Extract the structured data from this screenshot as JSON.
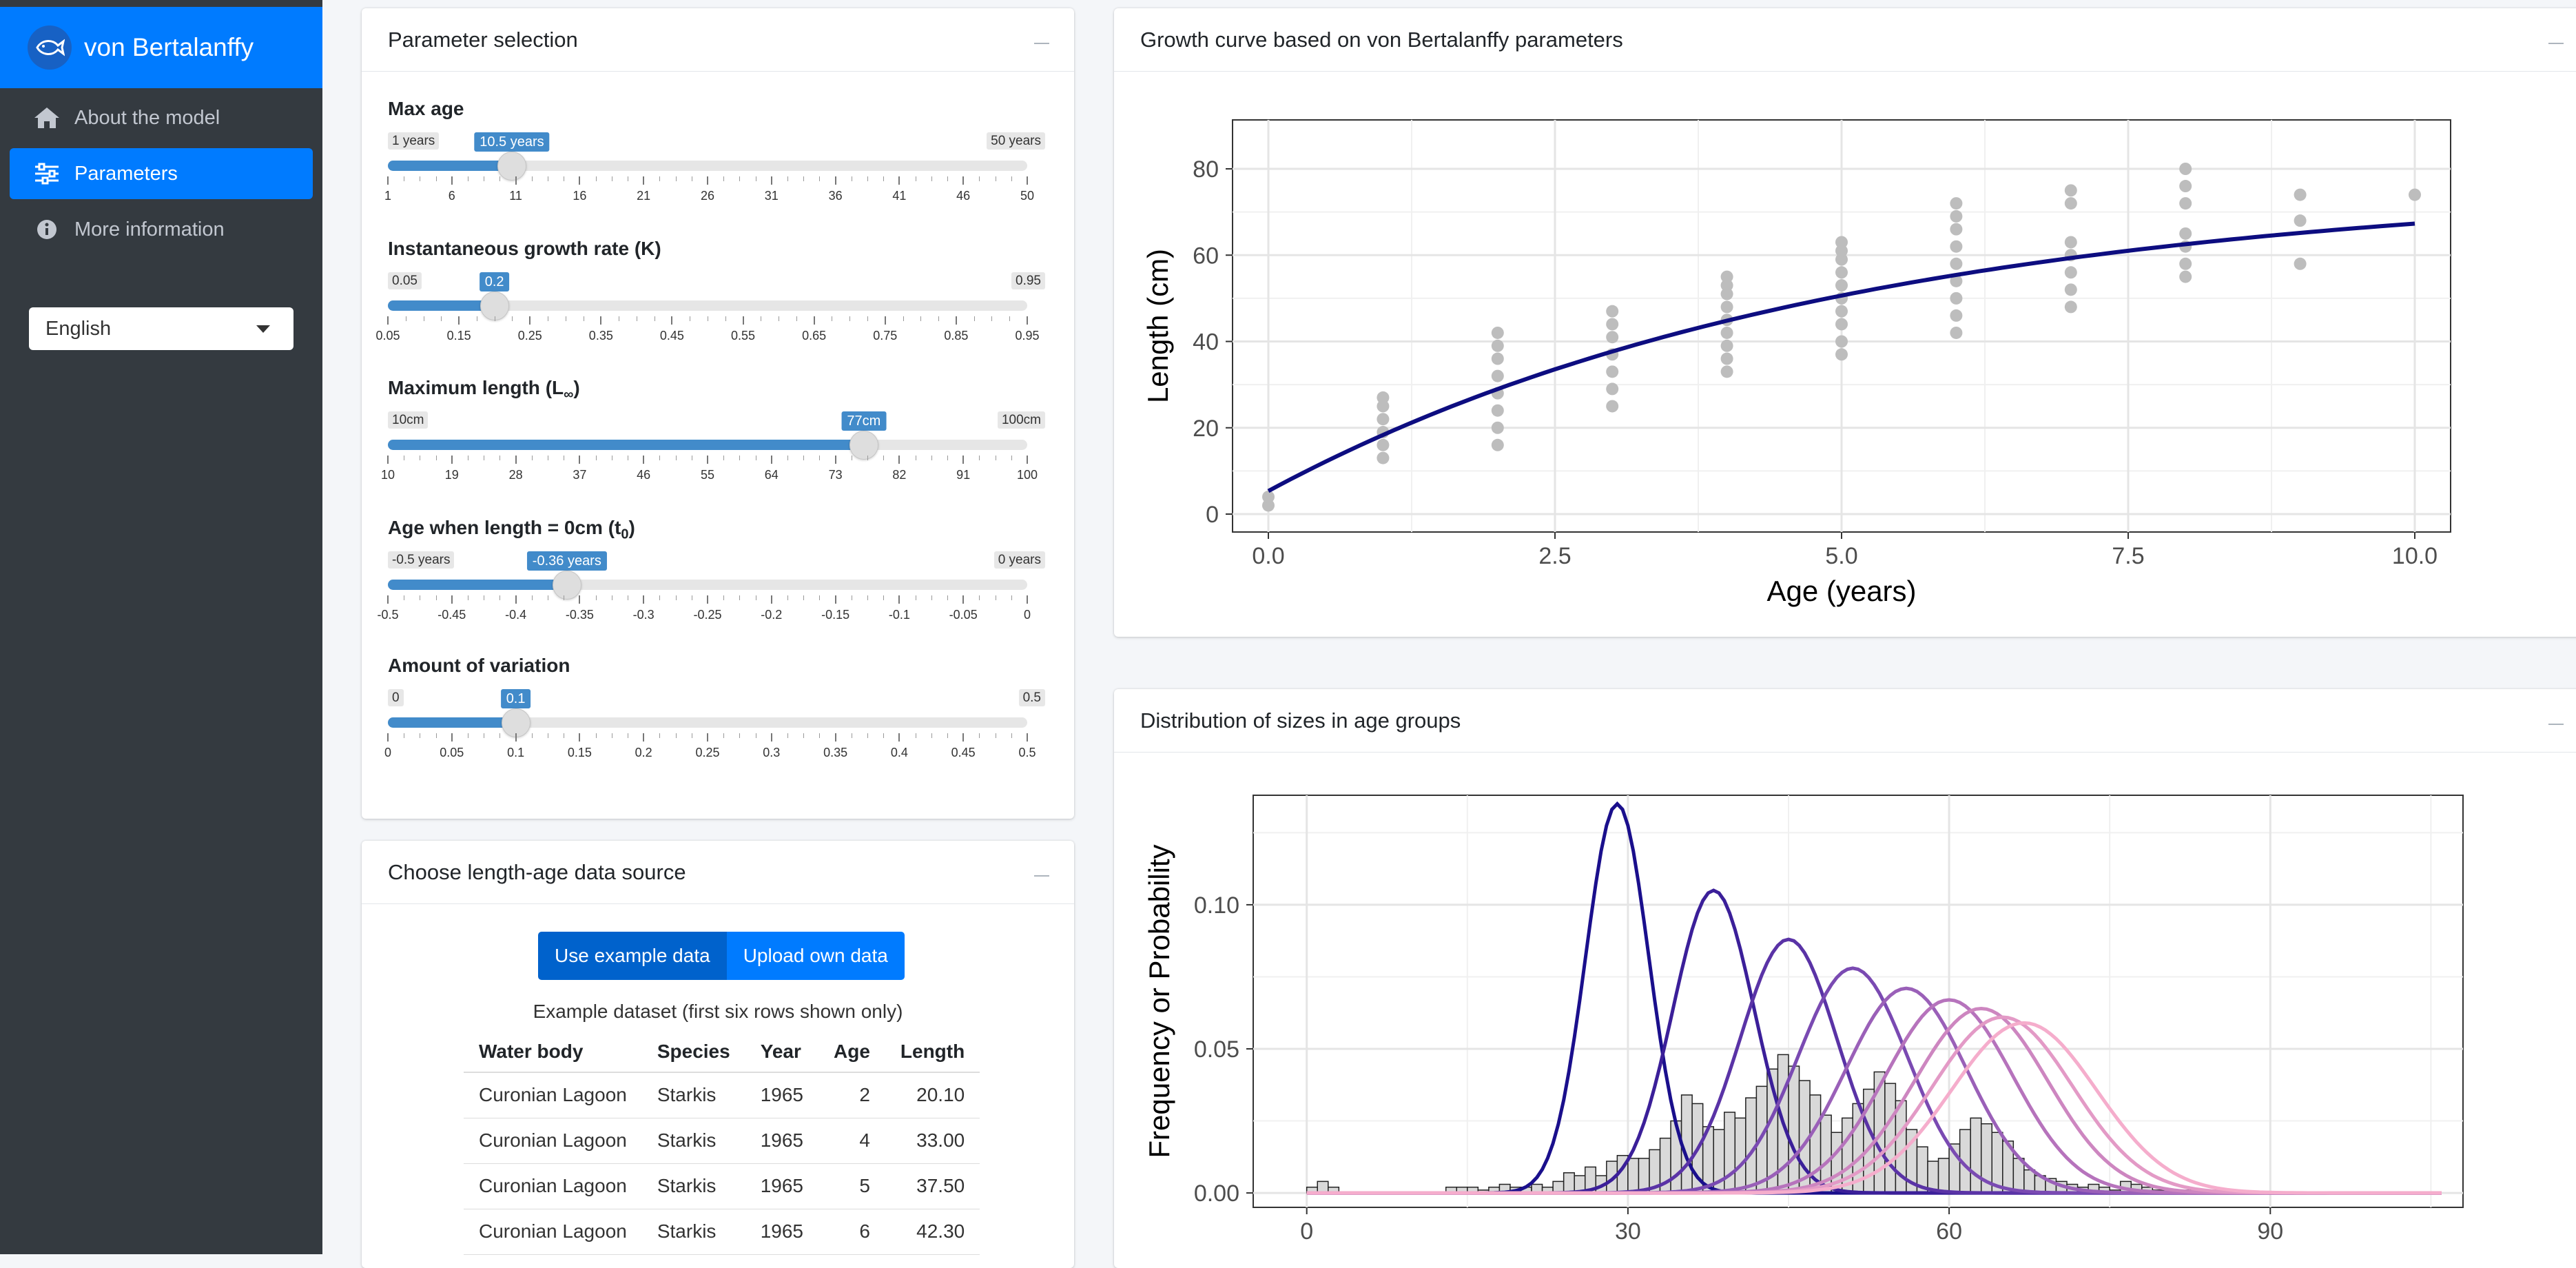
{
  "app": {
    "title": "von Bertalanffy"
  },
  "sidebar": {
    "items": [
      {
        "label": "About the model",
        "icon": "home-icon"
      },
      {
        "label": "Parameters",
        "icon": "sliders-icon",
        "active": true
      },
      {
        "label": "More information",
        "icon": "info-icon"
      }
    ],
    "language": {
      "selected": "English"
    }
  },
  "params_card": {
    "title": "Parameter selection",
    "sliders": [
      {
        "label": "Max age",
        "min_label": "1 years",
        "max_label": "50 years",
        "value_label": "10.5 years",
        "value": 10.5,
        "min": 1,
        "max": 50,
        "ticks": [
          "1",
          "6",
          "11",
          "16",
          "21",
          "26",
          "31",
          "36",
          "41",
          "46",
          "50"
        ]
      },
      {
        "label": "Instantaneous growth rate (K)",
        "min_label": "0.05",
        "max_label": "0.95",
        "value_label": "0.2",
        "value": 0.2,
        "min": 0.05,
        "max": 0.95,
        "ticks": [
          "0.05",
          "0.15",
          "0.25",
          "0.35",
          "0.45",
          "0.55",
          "0.65",
          "0.75",
          "0.85",
          "0.95"
        ]
      },
      {
        "label": "Maximum length (L",
        "label_sub": "∞",
        "label_end": ")",
        "min_label": "10cm",
        "max_label": "100cm",
        "value_label": "77cm",
        "value": 77,
        "min": 10,
        "max": 100,
        "ticks": [
          "10",
          "19",
          "28",
          "37",
          "46",
          "55",
          "64",
          "73",
          "82",
          "91",
          "100"
        ]
      },
      {
        "label": "Age when length = 0cm (t",
        "label_sub": "0",
        "label_end": ")",
        "min_label": "-0.5 years",
        "max_label": "0 years",
        "value_label": "-0.36 years",
        "value": -0.36,
        "min": -0.5,
        "max": 0,
        "ticks": [
          "-0.5",
          "-0.45",
          "-0.4",
          "-0.35",
          "-0.3",
          "-0.25",
          "-0.2",
          "-0.15",
          "-0.1",
          "-0.05",
          "0"
        ]
      },
      {
        "label": "Amount of variation",
        "min_label": "0",
        "max_label": "0.5",
        "value_label": "0.1",
        "value": 0.1,
        "min": 0,
        "max": 0.5,
        "ticks": [
          "0",
          "0.05",
          "0.1",
          "0.15",
          "0.2",
          "0.25",
          "0.3",
          "0.35",
          "0.4",
          "0.45",
          "0.5"
        ]
      }
    ]
  },
  "data_card": {
    "title": "Choose length-age data source",
    "buttons": {
      "example": "Use example data",
      "upload": "Upload own data"
    },
    "caption": "Example dataset (first six rows shown only)",
    "table": {
      "columns": [
        "Water body",
        "Species",
        "Year",
        "Age",
        "Length"
      ],
      "rows": [
        [
          "Curonian Lagoon",
          "Starkis",
          "1965",
          "2",
          "20.10"
        ],
        [
          "Curonian Lagoon",
          "Starkis",
          "1965",
          "4",
          "33.00"
        ],
        [
          "Curonian Lagoon",
          "Starkis",
          "1965",
          "5",
          "37.50"
        ],
        [
          "Curonian Lagoon",
          "Starkis",
          "1965",
          "6",
          "42.30"
        ]
      ]
    }
  },
  "growth_card": {
    "title": "Growth curve based on von Bertalanffy parameters"
  },
  "dist_card": {
    "title": "Distribution of sizes in age groups"
  },
  "chart_data": [
    {
      "type": "scatter",
      "xlabel": "Age (years)",
      "ylabel": "Length (cm)",
      "xlim": [
        0,
        10
      ],
      "ylim": [
        0,
        80
      ],
      "xticks": [
        "0.0",
        "2.5",
        "5.0",
        "7.5",
        "10.0"
      ],
      "yticks": [
        "0",
        "20",
        "40",
        "60",
        "80"
      ],
      "grid": true,
      "point_color": "#bdbdbd",
      "line_color": "#0d0d80",
      "points": [
        {
          "x": 0,
          "y": [
            2,
            4
          ]
        },
        {
          "x": 1,
          "y": [
            13,
            16,
            19,
            22,
            25,
            27
          ]
        },
        {
          "x": 2,
          "y": [
            16,
            20,
            24,
            28,
            32,
            36,
            39,
            42
          ]
        },
        {
          "x": 3,
          "y": [
            25,
            29,
            33,
            37,
            41,
            44,
            47
          ]
        },
        {
          "x": 4,
          "y": [
            33,
            36,
            39,
            42,
            45,
            48,
            51,
            53,
            55
          ]
        },
        {
          "x": 5,
          "y": [
            37,
            40,
            44,
            47,
            50,
            53,
            56,
            59,
            61,
            63
          ]
        },
        {
          "x": 6,
          "y": [
            42,
            46,
            50,
            54,
            58,
            62,
            66,
            69,
            72
          ]
        },
        {
          "x": 7,
          "y": [
            48,
            52,
            56,
            60,
            63,
            72,
            75
          ]
        },
        {
          "x": 8,
          "y": [
            55,
            58,
            62,
            65,
            72,
            76,
            80
          ]
        },
        {
          "x": 9,
          "y": [
            58,
            68,
            74
          ]
        },
        {
          "x": 10,
          "y": [
            74
          ]
        }
      ],
      "curve": {
        "Linf": 77,
        "K": 0.2,
        "t0": -0.36,
        "x_range": [
          0,
          10
        ]
      }
    },
    {
      "type": "histogram",
      "xlabel": "",
      "ylabel": "Frequency or Probability",
      "xlim": [
        -5,
        108
      ],
      "ylim": [
        -0.005,
        0.138
      ],
      "xticks": [
        "0",
        "30",
        "60",
        "90"
      ],
      "yticks": [
        "0.00",
        "0.05",
        "0.10"
      ],
      "grid": true,
      "histogram_bins": {
        "start": 0,
        "width": 1,
        "values": [
          0.002,
          0.004,
          0.002,
          0,
          0,
          0,
          0,
          0,
          0,
          0,
          0,
          0,
          0,
          0.002,
          0.002,
          0.002,
          0.001,
          0.002,
          0.003,
          0.002,
          0.002,
          0.003,
          0.002,
          0.004,
          0.007,
          0.006,
          0.009,
          0.006,
          0.011,
          0.013,
          0.012,
          0.012,
          0.015,
          0.019,
          0.025,
          0.034,
          0.031,
          0.023,
          0.022,
          0.028,
          0.026,
          0.033,
          0.037,
          0.043,
          0.048,
          0.044,
          0.039,
          0.034,
          0.027,
          0.021,
          0.026,
          0.031,
          0.036,
          0.042,
          0.038,
          0.032,
          0.022,
          0.016,
          0.011,
          0.012,
          0.017,
          0.022,
          0.026,
          0.024,
          0.021,
          0.018,
          0.012,
          0.008,
          0.006,
          0.005,
          0.004,
          0.003,
          0.002,
          0.003,
          0.002,
          0.001,
          0.004,
          0.003,
          0.002,
          0.001,
          0.001,
          0.001,
          0.001,
          0.001,
          0.001
        ]
      },
      "curves": [
        {
          "mean": 29,
          "peak": 0.135,
          "color": "#1a0f8c"
        },
        {
          "mean": 38,
          "peak": 0.105,
          "color": "#3b1f99"
        },
        {
          "mean": 45,
          "peak": 0.088,
          "color": "#5a33a6"
        },
        {
          "mean": 51,
          "peak": 0.078,
          "color": "#7a4ab2"
        },
        {
          "mean": 56,
          "peak": 0.071,
          "color": "#9a60b8"
        },
        {
          "mean": 60,
          "peak": 0.067,
          "color": "#b673bc"
        },
        {
          "mean": 63,
          "peak": 0.064,
          "color": "#cd86c0"
        },
        {
          "mean": 65,
          "peak": 0.061,
          "color": "#e39ac6"
        },
        {
          "mean": 67,
          "peak": 0.059,
          "color": "#f5adcc"
        }
      ]
    }
  ]
}
